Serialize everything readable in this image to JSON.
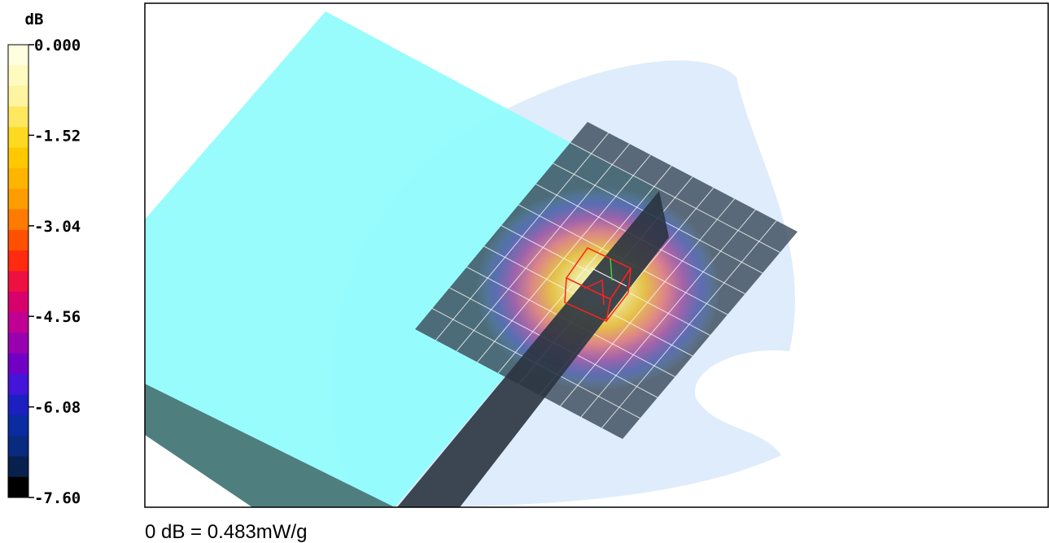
{
  "colorbar": {
    "unit": "dB",
    "ticks": [
      "0.000",
      "-1.52",
      "-3.04",
      "-4.56",
      "-6.08",
      "-7.60"
    ]
  },
  "footer": "0 dB = 0.483mW/g"
}
